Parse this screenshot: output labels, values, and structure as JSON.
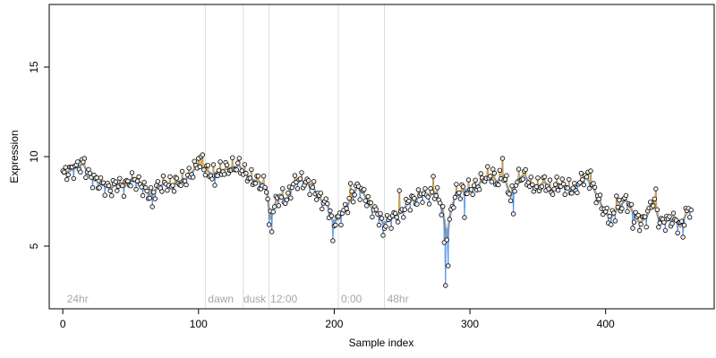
{
  "chart_data": {
    "type": "scatter",
    "title": "",
    "xlabel": "Sample index",
    "ylabel": "Expression",
    "xlim": [
      -10,
      480
    ],
    "ylim": [
      1.5,
      18.5
    ],
    "x_ticks": [
      0,
      100,
      200,
      300,
      400
    ],
    "y_ticks": [
      5,
      10,
      15
    ],
    "grid": false,
    "colors": {
      "trend_gray": "#9e9e9e",
      "above_fill": "#f5a623",
      "below_line": "#4f8fe6",
      "point_fill": "#f0f0f0",
      "divider": "#dcdcdc",
      "annotation": "#a6a6a6"
    },
    "dividers": [
      105,
      133,
      152,
      203,
      237
    ],
    "annotations": [
      {
        "x": 3,
        "label": "24hr"
      },
      {
        "x": 107,
        "label": "dawn"
      },
      {
        "x": 133,
        "label": "dusk"
      },
      {
        "x": 153,
        "label": "12:00"
      },
      {
        "x": 205,
        "label": "0:00"
      },
      {
        "x": 239,
        "label": "48hr"
      }
    ],
    "anchors": [
      [
        0,
        9.0
      ],
      [
        5,
        9.2
      ],
      [
        10,
        9.4
      ],
      [
        15,
        9.6
      ],
      [
        20,
        8.9
      ],
      [
        25,
        8.6
      ],
      [
        30,
        8.4
      ],
      [
        35,
        8.2
      ],
      [
        40,
        8.5
      ],
      [
        45,
        8.3
      ],
      [
        50,
        8.7
      ],
      [
        55,
        8.6
      ],
      [
        60,
        8.2
      ],
      [
        65,
        7.8
      ],
      [
        70,
        8.3
      ],
      [
        75,
        8.5
      ],
      [
        80,
        8.4
      ],
      [
        85,
        8.6
      ],
      [
        90,
        8.7
      ],
      [
        95,
        9.1
      ],
      [
        100,
        9.6
      ],
      [
        105,
        9.3
      ],
      [
        110,
        9.0
      ],
      [
        115,
        9.2
      ],
      [
        120,
        9.3
      ],
      [
        125,
        9.4
      ],
      [
        130,
        9.5
      ],
      [
        135,
        9.0
      ],
      [
        140,
        8.7
      ],
      [
        145,
        8.6
      ],
      [
        150,
        8.3
      ],
      [
        153,
        6.5
      ],
      [
        156,
        7.3
      ],
      [
        160,
        7.8
      ],
      [
        165,
        7.6
      ],
      [
        170,
        8.5
      ],
      [
        175,
        8.7
      ],
      [
        180,
        8.5
      ],
      [
        185,
        8.2
      ],
      [
        190,
        7.6
      ],
      [
        195,
        7.3
      ],
      [
        199,
        6.4
      ],
      [
        203,
        6.5
      ],
      [
        207,
        6.9
      ],
      [
        212,
        7.6
      ],
      [
        217,
        8.3
      ],
      [
        222,
        7.9
      ],
      [
        227,
        7.2
      ],
      [
        232,
        6.8
      ],
      [
        236,
        6.3
      ],
      [
        240,
        6.4
      ],
      [
        245,
        6.7
      ],
      [
        250,
        6.9
      ],
      [
        255,
        7.5
      ],
      [
        260,
        7.6
      ],
      [
        265,
        7.9
      ],
      [
        270,
        7.8
      ],
      [
        275,
        8.0
      ],
      [
        280,
        7.0
      ],
      [
        283,
        5.5
      ],
      [
        286,
        7.0
      ],
      [
        290,
        8.0
      ],
      [
        295,
        8.1
      ],
      [
        300,
        8.2
      ],
      [
        305,
        8.3
      ],
      [
        310,
        8.8
      ],
      [
        315,
        9.0
      ],
      [
        320,
        8.6
      ],
      [
        325,
        8.9
      ],
      [
        330,
        7.8
      ],
      [
        335,
        8.7
      ],
      [
        340,
        9.0
      ],
      [
        345,
        8.4
      ],
      [
        350,
        8.3
      ],
      [
        355,
        8.6
      ],
      [
        360,
        8.1
      ],
      [
        365,
        8.5
      ],
      [
        370,
        8.3
      ],
      [
        375,
        8.2
      ],
      [
        380,
        8.5
      ],
      [
        385,
        8.9
      ],
      [
        390,
        8.4
      ],
      [
        395,
        7.6
      ],
      [
        400,
        6.8
      ],
      [
        405,
        6.7
      ],
      [
        410,
        7.2
      ],
      [
        415,
        7.6
      ],
      [
        420,
        6.9
      ],
      [
        425,
        6.3
      ],
      [
        430,
        6.6
      ],
      [
        435,
        7.6
      ],
      [
        440,
        6.3
      ],
      [
        445,
        6.4
      ],
      [
        450,
        6.5
      ],
      [
        455,
        6.1
      ],
      [
        460,
        6.9
      ],
      [
        463,
        7.1
      ]
    ],
    "outliers": [
      [
        16,
        9.9
      ],
      [
        66,
        7.2
      ],
      [
        100,
        9.9
      ],
      [
        103,
        10.1
      ],
      [
        112,
        8.4
      ],
      [
        146,
        8.2
      ],
      [
        152,
        6.2
      ],
      [
        154,
        5.8
      ],
      [
        199,
        5.3
      ],
      [
        212,
        8.5
      ],
      [
        236,
        5.6
      ],
      [
        248,
        8.1
      ],
      [
        273,
        8.9
      ],
      [
        281,
        5.2
      ],
      [
        282,
        2.8
      ],
      [
        284,
        3.9
      ],
      [
        285,
        6.5
      ],
      [
        296,
        6.6
      ],
      [
        317,
        9.3
      ],
      [
        324,
        9.9
      ],
      [
        332,
        6.8
      ],
      [
        378,
        8.1
      ],
      [
        389,
        9.2
      ],
      [
        404,
        6.2
      ],
      [
        408,
        7.8
      ],
      [
        420,
        6.0
      ],
      [
        437,
        8.2
      ],
      [
        457,
        5.5
      ]
    ]
  }
}
